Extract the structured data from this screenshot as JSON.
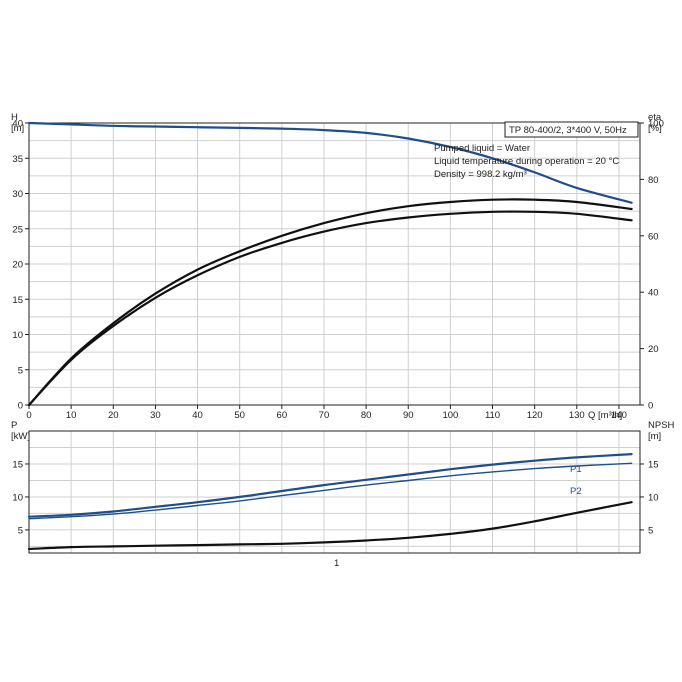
{
  "chart_data": [
    {
      "type": "line",
      "title": "TP 80-400/2, 3*400 V, 50Hz",
      "annotations": [
        "Pumped liquid = Water",
        "Liquid temperature during operation = 20 °C",
        "Density = 998.2 kg/m³"
      ],
      "xlabel": "Q [m³/h]",
      "ylabel_left": "H\n[m]",
      "ylabel_right": "eta\n[%]",
      "xlim": [
        0,
        145
      ],
      "x_ticks": [
        "0",
        "10",
        "20",
        "30",
        "40",
        "50",
        "60",
        "70",
        "80",
        "90",
        "100",
        "110",
        "120",
        "130",
        "140"
      ],
      "ylim_left": [
        0,
        40
      ],
      "y_ticks_left": [
        "0",
        "5",
        "10",
        "15",
        "20",
        "25",
        "30",
        "35",
        "40"
      ],
      "ylim_right": [
        0,
        100
      ],
      "y_ticks_right": [
        "0",
        "20",
        "40",
        "60",
        "80",
        "100"
      ],
      "grid": true,
      "series": [
        {
          "axis": "left",
          "color": "#1f4e8c",
          "x": [
            0,
            10,
            20,
            30,
            40,
            50,
            60,
            70,
            80,
            90,
            100,
            110,
            120,
            130,
            143
          ],
          "values": [
            40,
            39.8,
            39.6,
            39.5,
            39.4,
            39.3,
            39.2,
            39.0,
            38.6,
            37.8,
            36.6,
            35.0,
            33.0,
            30.8,
            28.7
          ]
        },
        {
          "axis": "right",
          "color": "#111111",
          "x": [
            0,
            10,
            20,
            30,
            40,
            50,
            60,
            70,
            80,
            90,
            100,
            110,
            120,
            130,
            143
          ],
          "values": [
            0,
            16,
            28,
            38,
            46,
            52.5,
            57.5,
            61.5,
            64.5,
            66.5,
            67.8,
            68.5,
            68.5,
            67.8,
            65.5
          ]
        },
        {
          "axis": "right",
          "color": "#111111",
          "x": [
            0,
            10,
            20,
            30,
            40,
            50,
            60,
            70,
            80,
            90,
            100,
            110,
            120,
            130,
            143
          ],
          "values": [
            0,
            16.5,
            29,
            39.5,
            48,
            54.5,
            60,
            64.5,
            68,
            70.5,
            72,
            72.8,
            72.8,
            72,
            69.5
          ]
        }
      ]
    },
    {
      "type": "line",
      "xlabel": "",
      "ylabel_left": "P\n[kW]",
      "ylabel_right": "NPSH\n[m]",
      "xlim": [
        0,
        145
      ],
      "ylim_left": [
        1.5,
        20
      ],
      "y_ticks_left": [
        "5",
        "10",
        "15"
      ],
      "ylim_right": [
        1.5,
        20
      ],
      "y_ticks_right": [
        "5",
        "10",
        "15"
      ],
      "bottom_label": "1",
      "grid": true,
      "series": [
        {
          "name": "P1",
          "axis": "left",
          "color": "#1f4e8c",
          "x": [
            0,
            10,
            20,
            30,
            40,
            50,
            60,
            70,
            80,
            90,
            100,
            110,
            120,
            130,
            143
          ],
          "values": [
            7.0,
            7.3,
            7.8,
            8.5,
            9.2,
            10.0,
            10.9,
            11.8,
            12.6,
            13.4,
            14.2,
            14.9,
            15.5,
            16.0,
            16.5
          ]
        },
        {
          "name": "P2",
          "axis": "left",
          "color": "#1f4e8c",
          "x": [
            0,
            10,
            20,
            30,
            40,
            50,
            60,
            70,
            80,
            90,
            100,
            110,
            120,
            130,
            143
          ],
          "values": [
            6.7,
            7.0,
            7.4,
            8.0,
            8.7,
            9.4,
            10.2,
            11.0,
            11.8,
            12.5,
            13.2,
            13.8,
            14.3,
            14.7,
            15.1
          ]
        },
        {
          "name": "",
          "axis": "right",
          "color": "#111111",
          "x": [
            0,
            10,
            20,
            30,
            40,
            50,
            60,
            70,
            80,
            90,
            100,
            110,
            120,
            130,
            143
          ],
          "values": [
            2.1,
            2.4,
            2.5,
            2.6,
            2.7,
            2.8,
            2.9,
            3.1,
            3.4,
            3.8,
            4.4,
            5.2,
            6.3,
            7.6,
            9.2
          ]
        }
      ]
    }
  ]
}
